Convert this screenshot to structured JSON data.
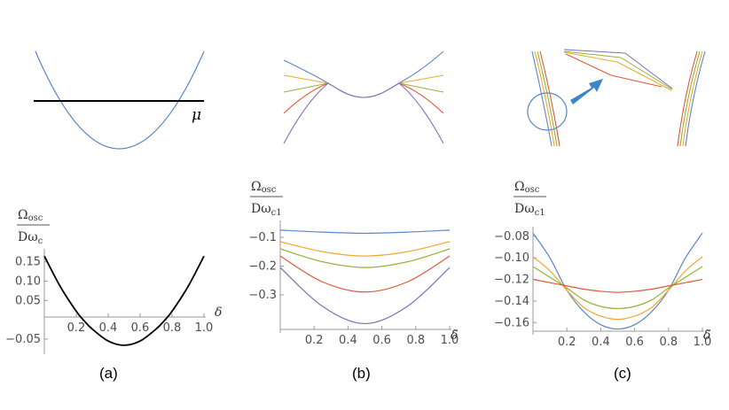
{
  "figure": {
    "top_a": {
      "mu_label": "μ"
    },
    "captions": [
      "(a)",
      "(b)",
      "(c)"
    ]
  },
  "colors": {
    "blue": "#5b87c7",
    "orange": "#f0a830",
    "green": "#93b338",
    "red": "#e0583a",
    "purple": "#7b72b9",
    "black": "#000000"
  },
  "chart_data": [
    {
      "type": "line",
      "ylabel_num": "Ω",
      "ylabel_num_sub": "osc",
      "ylabel_den": "Dω",
      "ylabel_den_sub": "c",
      "xlabel": "δ",
      "xlim": [
        0,
        1.0
      ],
      "ylim": [
        -0.08,
        0.17
      ],
      "xticks": [
        0.2,
        0.4,
        0.6,
        0.8,
        1.0
      ],
      "xtick_labels": [
        "0.2",
        "0.4",
        "0.6",
        "0.8",
        "1.0"
      ],
      "yticks": [
        0.15,
        0.1,
        0.05,
        -0.05
      ],
      "ytick_labels": [
        "0.15",
        "0.10",
        "0.05",
        "−0.05"
      ],
      "series": [
        {
          "color": "black",
          "x": [
            0,
            0.1,
            0.2,
            0.25,
            0.3,
            0.4,
            0.5,
            0.6,
            0.7,
            0.75,
            0.8,
            0.9,
            1.0
          ],
          "y": [
            0.165,
            0.086,
            0.022,
            -0.003,
            -0.024,
            -0.055,
            -0.066,
            -0.055,
            -0.024,
            -0.003,
            0.022,
            0.086,
            0.165
          ]
        }
      ]
    },
    {
      "type": "line",
      "ylabel_num": "Ω",
      "ylabel_num_sub": "osc",
      "ylabel_den": "Dω",
      "ylabel_den_sub": "c1",
      "xlabel": "δ̃",
      "xlim": [
        0,
        1.0
      ],
      "ylim": [
        -0.42,
        -0.06
      ],
      "xticks": [
        0.2,
        0.4,
        0.6,
        0.8,
        1.0
      ],
      "xtick_labels": [
        "0.2",
        "0.4",
        "0.6",
        "0.8",
        "1.0"
      ],
      "yticks": [
        -0.1,
        -0.2,
        -0.3
      ],
      "ytick_labels": [
        "−0.1",
        "−0.2",
        "−0.3"
      ],
      "series": [
        {
          "color": "blue",
          "x": [
            0,
            0.25,
            0.5,
            0.75,
            1.0
          ],
          "y": [
            -0.075,
            -0.082,
            -0.086,
            -0.082,
            -0.075
          ]
        },
        {
          "color": "orange",
          "x": [
            0,
            0.25,
            0.5,
            0.75,
            1.0
          ],
          "y": [
            -0.115,
            -0.15,
            -0.165,
            -0.15,
            -0.115
          ]
        },
        {
          "color": "green",
          "x": [
            0,
            0.25,
            0.5,
            0.75,
            1.0
          ],
          "y": [
            -0.14,
            -0.185,
            -0.205,
            -0.185,
            -0.14
          ]
        },
        {
          "color": "red",
          "x": [
            0,
            0.25,
            0.5,
            0.75,
            1.0
          ],
          "y": [
            -0.165,
            -0.255,
            -0.29,
            -0.255,
            -0.165
          ]
        },
        {
          "color": "purple",
          "x": [
            0,
            0.25,
            0.5,
            0.75,
            1.0
          ],
          "y": [
            -0.205,
            -0.34,
            -0.4,
            -0.34,
            -0.205
          ]
        }
      ]
    },
    {
      "type": "line",
      "ylabel_num": "Ω",
      "ylabel_num_sub": "osc",
      "ylabel_den": "Dω",
      "ylabel_den_sub": "c1",
      "xlabel": "δ̃",
      "xlim": [
        0,
        1.0
      ],
      "ylim": [
        -0.168,
        -0.076
      ],
      "xticks": [
        0.2,
        0.4,
        0.6,
        0.8,
        1.0
      ],
      "xtick_labels": [
        "0.2",
        "0.4",
        "0.6",
        "0.8",
        "1.0"
      ],
      "yticks": [
        -0.08,
        -0.1,
        -0.12,
        -0.14,
        -0.16
      ],
      "ytick_labels": [
        "−0.08",
        "−0.10",
        "−0.12",
        "−0.14",
        "−0.16"
      ],
      "series": [
        {
          "color": "blue",
          "x": [
            0,
            0.1,
            0.2,
            0.3,
            0.4,
            0.5,
            0.6,
            0.7,
            0.8,
            0.9,
            1.0
          ],
          "y": [
            -0.077,
            -0.1,
            -0.13,
            -0.15,
            -0.162,
            -0.166,
            -0.162,
            -0.15,
            -0.13,
            -0.1,
            -0.077
          ]
        },
        {
          "color": "orange",
          "x": [
            0,
            0.1,
            0.2,
            0.3,
            0.4,
            0.5,
            0.6,
            0.7,
            0.8,
            0.9,
            1.0
          ],
          "y": [
            -0.099,
            -0.112,
            -0.13,
            -0.146,
            -0.154,
            -0.157,
            -0.154,
            -0.146,
            -0.13,
            -0.112,
            -0.099
          ]
        },
        {
          "color": "green",
          "x": [
            0,
            0.1,
            0.2,
            0.3,
            0.4,
            0.5,
            0.6,
            0.7,
            0.8,
            0.9,
            1.0
          ],
          "y": [
            -0.108,
            -0.118,
            -0.128,
            -0.139,
            -0.145,
            -0.147,
            -0.145,
            -0.139,
            -0.128,
            -0.118,
            -0.108
          ]
        },
        {
          "color": "red",
          "x": [
            0,
            0.1,
            0.2,
            0.3,
            0.4,
            0.5,
            0.6,
            0.7,
            0.8,
            0.9,
            1.0
          ],
          "y": [
            -0.12,
            -0.123,
            -0.126,
            -0.129,
            -0.131,
            -0.132,
            -0.131,
            -0.129,
            -0.126,
            -0.123,
            -0.12
          ]
        }
      ]
    }
  ]
}
